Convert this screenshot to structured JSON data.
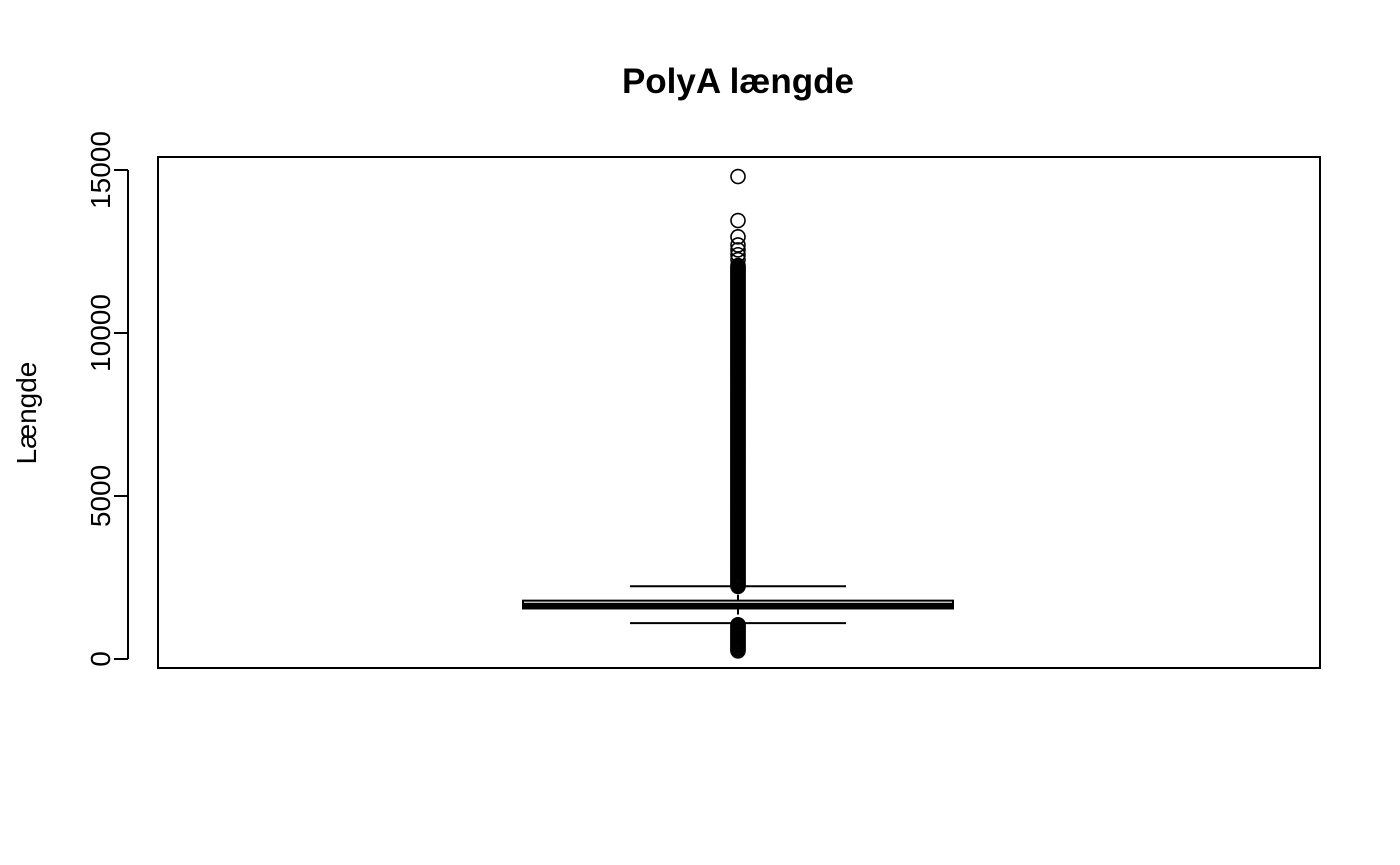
{
  "chart_data": {
    "type": "boxplot",
    "title": "PolyA længde",
    "ylabel": "Længde",
    "xlabel": "",
    "ylim": [
      0,
      15000
    ],
    "yticks": [
      0,
      5000,
      10000,
      15000
    ],
    "grid": false,
    "legend": "none",
    "box": {
      "whisker_low": 1100,
      "q1": 1550,
      "median": 1650,
      "q3": 1790,
      "whisker_high": 2230
    },
    "outliers_high_range": [
      2230,
      12100
    ],
    "outliers_low_range": [
      250,
      1080
    ],
    "outliers_isolated": [
      14800,
      13450,
      12950,
      12700,
      12550,
      12400,
      12250
    ]
  }
}
